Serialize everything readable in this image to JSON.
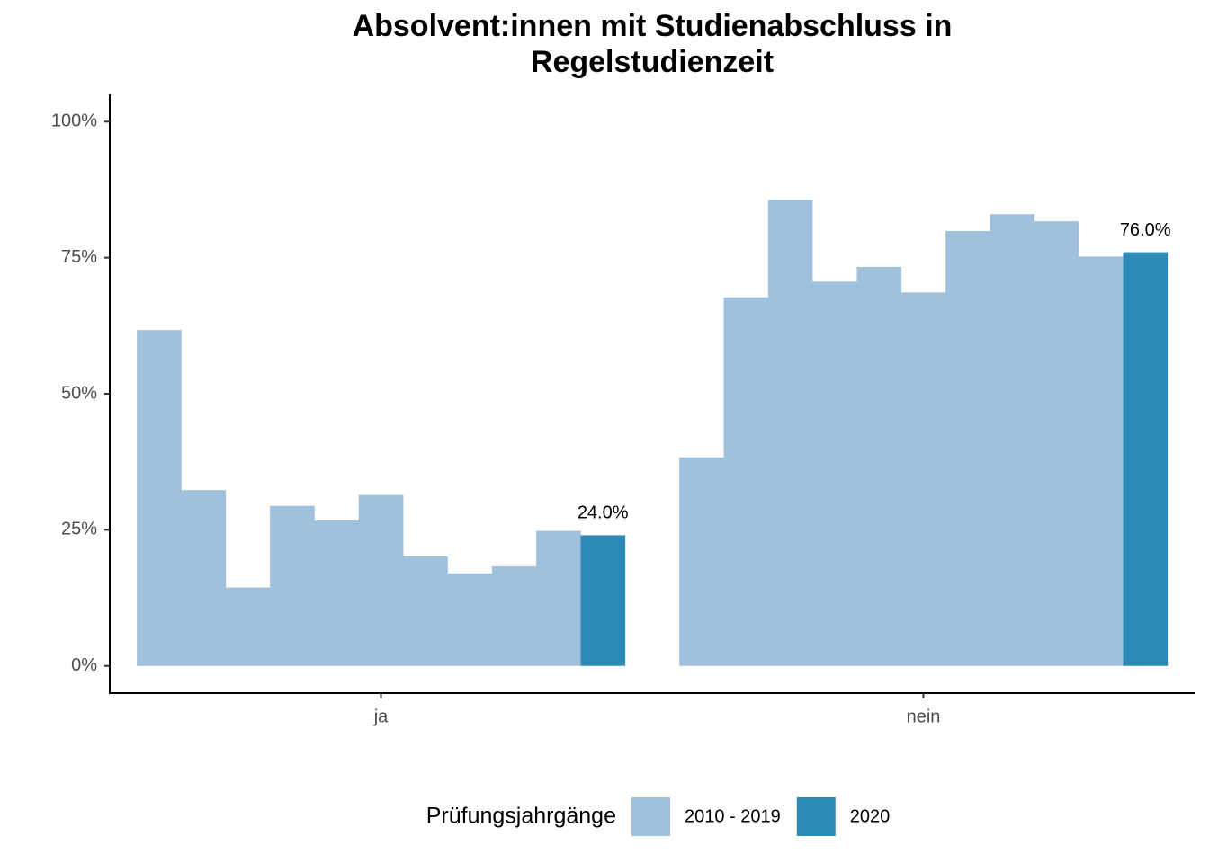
{
  "chart_data": {
    "type": "bar",
    "title": [
      "Absolvent:innen mit Studienabschluss in",
      "Regelstudienzeit"
    ],
    "categories": [
      "ja",
      "nein"
    ],
    "legend_title": "Prüfungsjahrgänge",
    "legend_position": "bottom",
    "series": [
      {
        "name": "2010 - 2019",
        "color": "#a0c1dd",
        "values": [
          [
            61.7,
            32.3,
            14.4,
            29.4,
            26.7,
            31.4,
            20.1,
            17.0,
            18.3,
            24.8
          ],
          [
            38.3,
            67.7,
            85.6,
            70.6,
            73.3,
            68.6,
            79.9,
            83.0,
            81.7,
            75.2
          ]
        ]
      },
      {
        "name": "2020",
        "color": "#2e8ab7",
        "values": [
          24.0,
          76.0
        ],
        "value_labels": [
          "24.0%",
          "76.0%"
        ]
      }
    ],
    "ylim": [
      -5,
      105
    ],
    "yticks": [
      {
        "value": 0,
        "label": "0%"
      },
      {
        "value": 25,
        "label": "25%"
      },
      {
        "value": 50,
        "label": "50%"
      },
      {
        "value": 75,
        "label": "75%"
      },
      {
        "value": 100,
        "label": "100%"
      }
    ],
    "grid": false
  }
}
